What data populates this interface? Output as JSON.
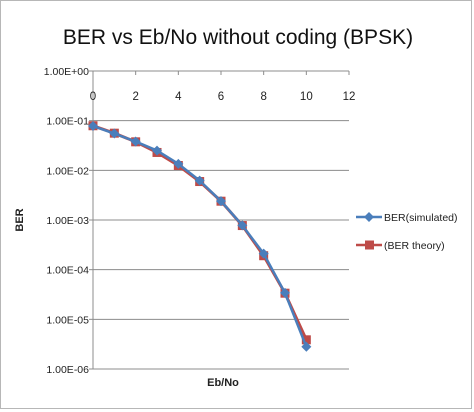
{
  "chart_data": {
    "type": "line",
    "title": "BER vs Eb/No without coding (BPSK)",
    "xlabel": "Eb/No",
    "ylabel": "BER",
    "xlim": [
      0,
      12
    ],
    "x_ticks": [
      0,
      2,
      4,
      6,
      8,
      10,
      12
    ],
    "y_scale": "log",
    "ylim": [
      1e-06,
      1
    ],
    "y_tick_values": [
      1,
      0.1,
      0.01,
      0.001,
      0.0001,
      1e-05,
      1e-06
    ],
    "y_tick_labels": [
      "1.00E+00",
      "1.00E-01",
      "1.00E-02",
      "1.00E-03",
      "1.00E-04",
      "1.00E-05",
      "1.00E-06"
    ],
    "grid": "horizontal major gridlines",
    "legend_position": "right",
    "series": [
      {
        "name": "BER(simulated)",
        "color": "#4a7ebb",
        "marker": "diamond",
        "x": [
          0,
          1,
          2,
          3,
          4,
          5,
          6,
          7,
          8,
          9,
          10
        ],
        "y": [
          0.078,
          0.055,
          0.038,
          0.025,
          0.0135,
          0.0062,
          0.0024,
          0.00078,
          0.00021,
          3.4e-05,
          2.8e-06
        ]
      },
      {
        "name": "(BER theory)",
        "color": "#be4b48",
        "marker": "square",
        "x": [
          0,
          1,
          2,
          3,
          4,
          5,
          6,
          7,
          8,
          9,
          10
        ],
        "y": [
          0.079,
          0.056,
          0.0375,
          0.0229,
          0.0125,
          0.00595,
          0.00239,
          0.000773,
          0.000191,
          3.36e-05,
          3.87e-06
        ]
      }
    ]
  }
}
